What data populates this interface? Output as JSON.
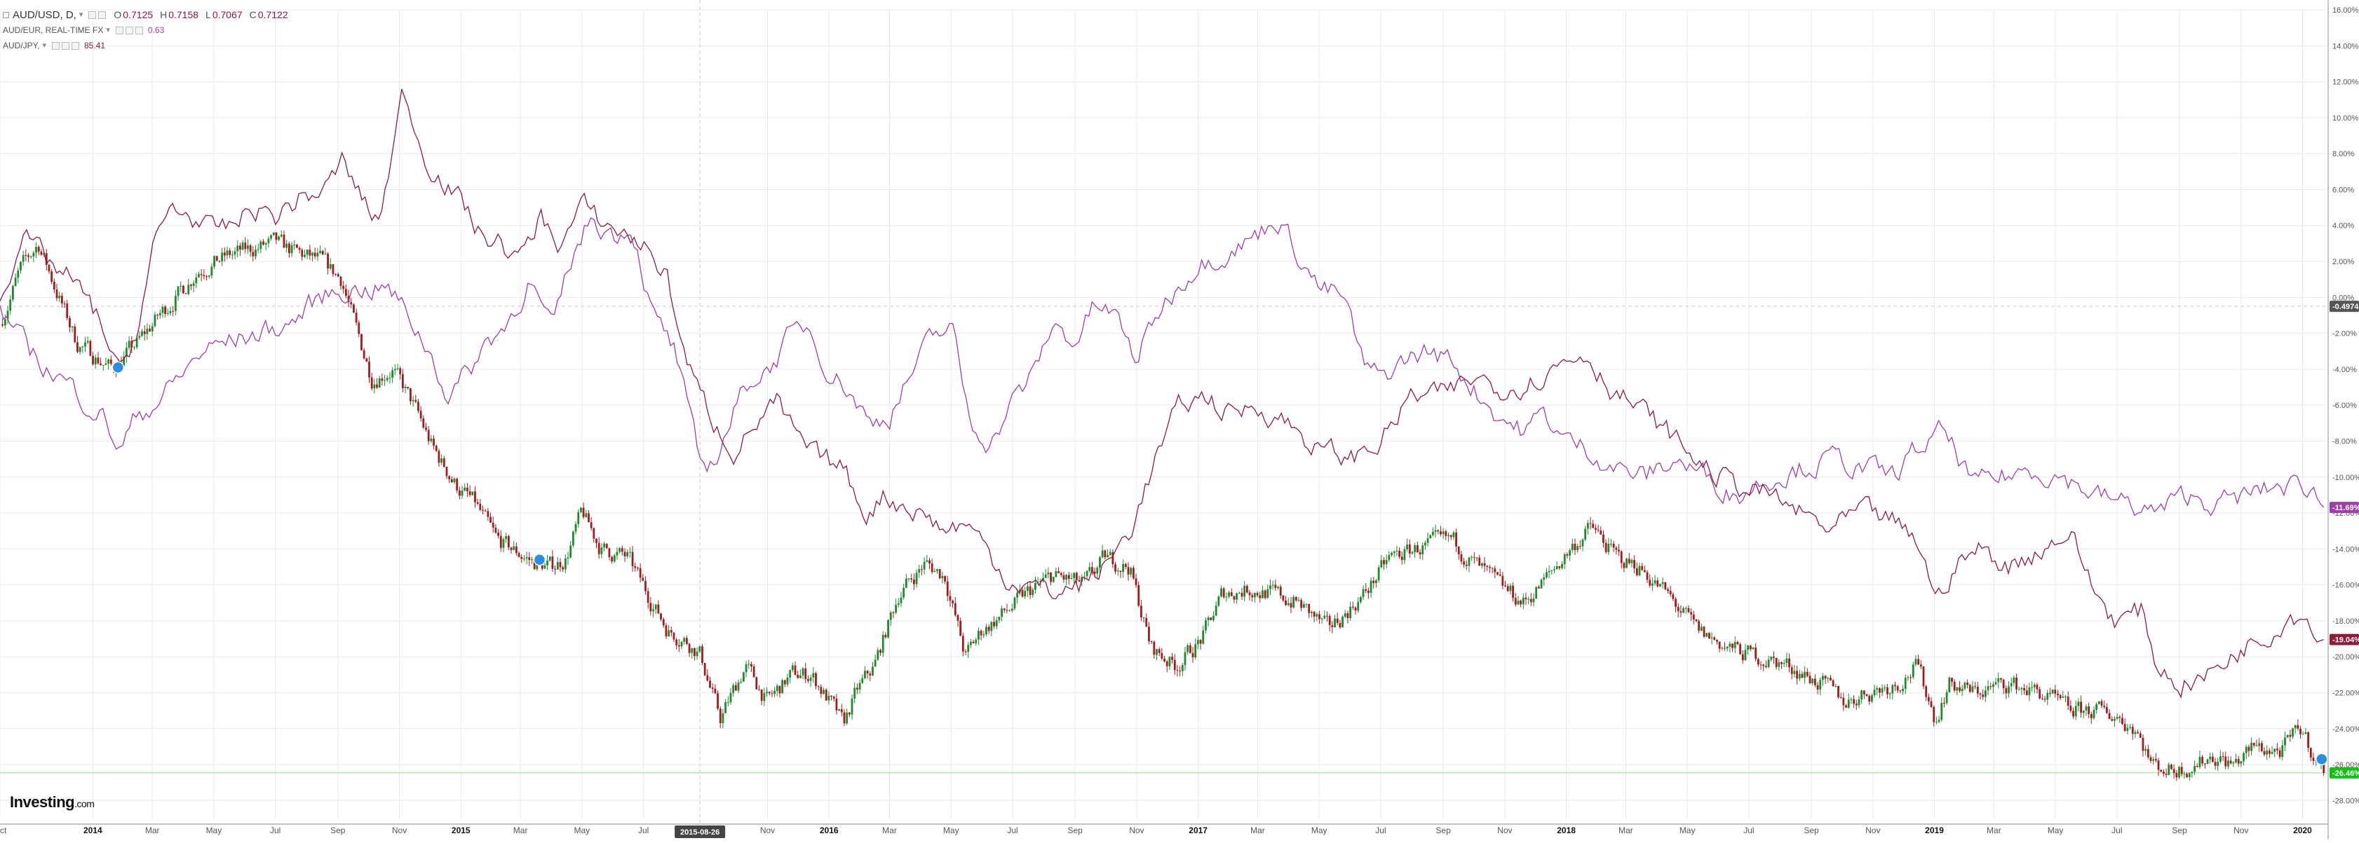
{
  "legend": {
    "main": {
      "symbol": "AUD/USD, D,",
      "caret": "▾",
      "open_label": "O",
      "open": "0.7125",
      "high_label": "H",
      "high": "0.7158",
      "low_label": "L",
      "low": "0.7067",
      "close_label": "C",
      "close": "0.7122"
    },
    "compare1": {
      "symbol": "AUD/EUR, REAL-TIME FX",
      "caret": "▾",
      "value": "0.63"
    },
    "compare2": {
      "symbol": "AUD/JPY,",
      "caret": "▾",
      "value": "85.41"
    }
  },
  "logo": {
    "brand": "Investing",
    "suffix": ".com"
  },
  "crosshair": {
    "date_label": "2015-08-26",
    "value_label": "-0.4974"
  },
  "last_values": {
    "main": "-26.46%",
    "compare1": "-11.69%",
    "compare2": "-19.04%"
  },
  "colors": {
    "up": "#1e8a2c",
    "down": "#a01c1c",
    "compare1": "#9c3fa8",
    "compare2": "#8e1b3a",
    "main_badge": "#12c212",
    "grid": "#e9e9e9"
  },
  "chart_data": {
    "type": "line",
    "y_unit": "percent change",
    "ylim": [
      -29,
      16
    ],
    "xlim": [
      "2013-10-01",
      "2020-01-25"
    ],
    "y_ticks": [
      16,
      14,
      12,
      10,
      8,
      6,
      4,
      2,
      0,
      -2,
      -4,
      -6,
      -8,
      -10,
      -12,
      -14,
      -16,
      -18,
      -20,
      -22,
      -24,
      -26,
      -28
    ],
    "y_tick_labels": [
      "16.00%",
      "14.00%",
      "12.00%",
      "10.00%",
      "8.00%",
      "6.00%",
      "4.00%",
      "2.00%",
      "0.00%",
      "-2.00%",
      "-4.00%",
      "-6.00%",
      "-8.00%",
      "-10.00%",
      "-12.00%",
      "-14.00%",
      "-16.00%",
      "-18.00%",
      "-20.00%",
      "-22.00%",
      "-24.00%",
      "-26.00%",
      "-28.00%"
    ],
    "x_ticks": [
      {
        "date": "2013-10-01",
        "label": "Oct",
        "bold": false
      },
      {
        "date": "2014-01-01",
        "label": "2014",
        "bold": true
      },
      {
        "date": "2014-03-01",
        "label": "Mar",
        "bold": false
      },
      {
        "date": "2014-05-01",
        "label": "May",
        "bold": false
      },
      {
        "date": "2014-07-01",
        "label": "Jul",
        "bold": false
      },
      {
        "date": "2014-09-01",
        "label": "Sep",
        "bold": false
      },
      {
        "date": "2014-11-01",
        "label": "Nov",
        "bold": false
      },
      {
        "date": "2015-01-01",
        "label": "2015",
        "bold": true
      },
      {
        "date": "2015-03-01",
        "label": "Mar",
        "bold": false
      },
      {
        "date": "2015-05-01",
        "label": "May",
        "bold": false
      },
      {
        "date": "2015-07-01",
        "label": "Jul",
        "bold": false
      },
      {
        "date": "2015-11-01",
        "label": "Nov",
        "bold": false
      },
      {
        "date": "2016-01-01",
        "label": "2016",
        "bold": true
      },
      {
        "date": "2016-03-01",
        "label": "Mar",
        "bold": false
      },
      {
        "date": "2016-05-01",
        "label": "May",
        "bold": false
      },
      {
        "date": "2016-07-01",
        "label": "Jul",
        "bold": false
      },
      {
        "date": "2016-09-01",
        "label": "Sep",
        "bold": false
      },
      {
        "date": "2016-11-01",
        "label": "Nov",
        "bold": false
      },
      {
        "date": "2017-01-01",
        "label": "2017",
        "bold": true
      },
      {
        "date": "2017-03-01",
        "label": "Mar",
        "bold": false
      },
      {
        "date": "2017-05-01",
        "label": "May",
        "bold": false
      },
      {
        "date": "2017-07-01",
        "label": "Jul",
        "bold": false
      },
      {
        "date": "2017-09-01",
        "label": "Sep",
        "bold": false
      },
      {
        "date": "2017-11-01",
        "label": "Nov",
        "bold": false
      },
      {
        "date": "2018-01-01",
        "label": "2018",
        "bold": true
      },
      {
        "date": "2018-03-01",
        "label": "Mar",
        "bold": false
      },
      {
        "date": "2018-05-01",
        "label": "May",
        "bold": false
      },
      {
        "date": "2018-07-01",
        "label": "Jul",
        "bold": false
      },
      {
        "date": "2018-09-01",
        "label": "Sep",
        "bold": false
      },
      {
        "date": "2018-11-01",
        "label": "Nov",
        "bold": false
      },
      {
        "date": "2019-01-01",
        "label": "2019",
        "bold": true
      },
      {
        "date": "2019-03-01",
        "label": "Mar",
        "bold": false
      },
      {
        "date": "2019-05-01",
        "label": "May",
        "bold": false
      },
      {
        "date": "2019-07-01",
        "label": "Jul",
        "bold": false
      },
      {
        "date": "2019-09-01",
        "label": "Sep",
        "bold": false
      },
      {
        "date": "2019-11-01",
        "label": "Nov",
        "bold": false
      },
      {
        "date": "2020-01-01",
        "label": "2020",
        "bold": true
      }
    ],
    "reference_lines": [
      {
        "y": -0.4974,
        "style": "dashed"
      },
      {
        "y": -26.46,
        "style": "solid"
      }
    ],
    "series": [
      {
        "name": "AUD/USD",
        "style": "candles",
        "x": [
          "2013-10-01",
          "2013-10-21",
          "2013-11-08",
          "2013-11-25",
          "2013-12-16",
          "2014-01-20",
          "2014-01-28",
          "2014-02-15",
          "2014-03-08",
          "2014-04-01",
          "2014-04-15",
          "2014-05-15",
          "2014-06-15",
          "2014-07-01",
          "2014-07-25",
          "2014-08-15",
          "2014-09-05",
          "2014-09-20",
          "2014-10-05",
          "2014-10-25",
          "2014-11-15",
          "2014-12-05",
          "2014-12-28",
          "2015-01-15",
          "2015-02-05",
          "2015-03-01",
          "2015-03-15",
          "2015-04-01",
          "2015-04-15",
          "2015-05-01",
          "2015-05-20",
          "2015-06-15",
          "2015-07-10",
          "2015-07-25",
          "2015-08-10",
          "2015-08-26",
          "2015-09-15",
          "2015-10-10",
          "2015-11-01",
          "2015-11-25",
          "2015-12-15",
          "2016-01-05",
          "2016-01-15",
          "2016-01-28",
          "2016-02-15",
          "2016-03-10",
          "2016-04-05",
          "2016-04-25",
          "2016-05-15",
          "2016-06-01",
          "2016-06-25",
          "2016-07-15",
          "2016-08-10",
          "2016-09-10",
          "2016-10-01",
          "2016-10-25",
          "2016-11-15",
          "2016-12-10",
          "2017-01-05",
          "2017-01-25",
          "2017-02-20",
          "2017-03-15",
          "2017-04-10",
          "2017-05-10",
          "2017-06-15",
          "2017-07-10",
          "2017-08-05",
          "2017-09-10",
          "2017-10-05",
          "2017-10-25",
          "2017-11-20",
          "2017-12-10",
          "2018-01-05",
          "2018-01-26",
          "2018-02-20",
          "2018-03-15",
          "2018-04-10",
          "2018-05-10",
          "2018-06-10",
          "2018-07-10",
          "2018-08-10",
          "2018-09-10",
          "2018-10-05",
          "2018-10-25",
          "2018-11-25",
          "2018-12-15",
          "2019-01-02",
          "2019-01-15",
          "2019-02-10",
          "2019-03-15",
          "2019-04-15",
          "2019-05-15",
          "2019-06-10",
          "2019-07-01",
          "2019-07-20",
          "2019-08-05",
          "2019-08-25",
          "2019-09-15",
          "2019-10-05",
          "2019-10-25",
          "2019-11-15",
          "2019-12-10",
          "2019-12-31",
          "2020-01-15",
          "2020-01-22"
        ],
        "y": [
          -1.5,
          1.5,
          3.0,
          0.5,
          -2.5,
          -4.0,
          -3.5,
          -2.5,
          -1.0,
          0.5,
          1.5,
          2.3,
          2.8,
          3.0,
          2.4,
          2.0,
          1.0,
          -2.0,
          -4.5,
          -4.0,
          -6.0,
          -8.5,
          -10.5,
          -11.5,
          -13.5,
          -14.3,
          -14.8,
          -15.0,
          -14.5,
          -12.0,
          -14.0,
          -14.5,
          -17.0,
          -18.5,
          -19.0,
          -19.8,
          -23.5,
          -20.5,
          -22.5,
          -21.0,
          -21.0,
          -22.8,
          -23.8,
          -22.0,
          -20.5,
          -16.5,
          -14.8,
          -15.5,
          -20.0,
          -18.5,
          -17.5,
          -16.5,
          -15.5,
          -16.0,
          -14.5,
          -15.0,
          -19.5,
          -20.5,
          -19.0,
          -16.5,
          -16.2,
          -16.5,
          -17.0,
          -18.5,
          -16.5,
          -14.5,
          -14.0,
          -13.5,
          -15.0,
          -16.0,
          -17.0,
          -15.8,
          -14.0,
          -12.8,
          -14.5,
          -15.0,
          -16.5,
          -18.5,
          -19.5,
          -20.0,
          -20.5,
          -21.5,
          -22.5,
          -22.0,
          -21.5,
          -20.5,
          -23.5,
          -21.5,
          -22.0,
          -21.5,
          -22.0,
          -23.0,
          -23.0,
          -23.3,
          -24.0,
          -26.0,
          -26.3,
          -26.0,
          -25.5,
          -26.0,
          -25.0,
          -25.3,
          -24.0,
          -25.8,
          -26.46
        ]
      },
      {
        "name": "AUD/EUR, REAL-TIME FX",
        "style": "line",
        "x": [
          "2013-10-01",
          "2013-10-22",
          "2013-11-08",
          "2013-12-01",
          "2013-12-20",
          "2014-01-10",
          "2014-01-28",
          "2014-02-15",
          "2014-03-01",
          "2014-03-20",
          "2014-04-20",
          "2014-05-15",
          "2014-06-15",
          "2014-07-15",
          "2014-08-15",
          "2014-09-10",
          "2014-10-01",
          "2014-10-20",
          "2014-11-10",
          "2014-12-01",
          "2014-12-20",
          "2015-01-10",
          "2015-01-26",
          "2015-02-15",
          "2015-03-10",
          "2015-04-01",
          "2015-04-20",
          "2015-05-10",
          "2015-06-01",
          "2015-06-20",
          "2015-07-10",
          "2015-08-01",
          "2015-08-26",
          "2015-09-10",
          "2015-09-28",
          "2015-10-15",
          "2015-11-01",
          "2015-11-20",
          "2015-12-10",
          "2016-01-01",
          "2016-01-20",
          "2016-02-10",
          "2016-03-01",
          "2016-03-20",
          "2016-04-10",
          "2016-05-01",
          "2016-05-20",
          "2016-06-10",
          "2016-06-28",
          "2016-07-20",
          "2016-08-10",
          "2016-09-01",
          "2016-09-20",
          "2016-10-10",
          "2016-11-01",
          "2016-11-20",
          "2016-12-10",
          "2017-01-01",
          "2017-01-25",
          "2017-02-15",
          "2017-03-01",
          "2017-03-20",
          "2017-04-10",
          "2017-05-01",
          "2017-05-25",
          "2017-06-15",
          "2017-07-01",
          "2017-07-25",
          "2017-08-15",
          "2017-09-10",
          "2017-10-01",
          "2017-10-25",
          "2017-11-20",
          "2017-12-10",
          "2018-01-01",
          "2018-01-25",
          "2018-02-20",
          "2018-03-20",
          "2018-04-20",
          "2018-05-20",
          "2018-06-20",
          "2018-07-20",
          "2018-08-20",
          "2018-09-20",
          "2018-10-20",
          "2018-11-20",
          "2018-12-15",
          "2019-01-10",
          "2019-02-10",
          "2019-03-10",
          "2019-04-10",
          "2019-05-10",
          "2019-06-10",
          "2019-07-10",
          "2019-08-10",
          "2019-09-10",
          "2019-10-10",
          "2019-11-10",
          "2019-12-10",
          "2020-01-10",
          "2020-01-22"
        ],
        "y": [
          -0.5,
          -2.5,
          -3.5,
          -4.5,
          -5.5,
          -6.5,
          -8.5,
          -6.5,
          -6.0,
          -5.0,
          -3.0,
          -2.5,
          -2.0,
          -1.5,
          0.0,
          0.5,
          0.5,
          0.5,
          -1.0,
          -3.0,
          -5.5,
          -4.0,
          -2.5,
          -1.5,
          1.0,
          -2.0,
          2.0,
          4.5,
          3.5,
          4.0,
          -1.0,
          -3.0,
          -9.5,
          -9.0,
          -6.5,
          -4.5,
          -4.0,
          -2.5,
          -1.5,
          -4.0,
          -5.0,
          -7.0,
          -6.5,
          -4.5,
          -2.5,
          -1.5,
          -7.0,
          -8.0,
          -6.0,
          -4.5,
          -1.5,
          -2.5,
          -0.5,
          -1.0,
          -3.5,
          -1.0,
          0.5,
          2.0,
          2.5,
          3.0,
          3.5,
          4.5,
          2.5,
          0.5,
          0.0,
          -4.0,
          -4.5,
          -3.5,
          -3.0,
          -3.5,
          -5.0,
          -6.5,
          -7.5,
          -6.5,
          -8.0,
          -8.5,
          -9.5,
          -10.0,
          -9.0,
          -10.0,
          -11.0,
          -10.0,
          -9.5,
          -9.0,
          -9.5,
          -10.0,
          -8.5,
          -7.5,
          -10.5,
          -10.0,
          -9.5,
          -10.0,
          -11.0,
          -11.5,
          -12.0,
          -11.0,
          -11.5,
          -11.0,
          -10.5,
          -10.5,
          -11.69
        ]
      },
      {
        "name": "AUD/JPY",
        "style": "line",
        "x": [
          "2013-10-01",
          "2013-10-22",
          "2013-11-15",
          "2013-12-10",
          "2014-01-10",
          "2014-01-28",
          "2014-02-15",
          "2014-03-01",
          "2014-03-20",
          "2014-04-10",
          "2014-04-30",
          "2014-05-20",
          "2014-06-10",
          "2014-07-01",
          "2014-07-25",
          "2014-08-20",
          "2014-09-05",
          "2014-09-25",
          "2014-10-10",
          "2014-10-25",
          "2014-11-05",
          "2014-11-25",
          "2014-12-15",
          "2015-01-05",
          "2015-01-20",
          "2015-02-10",
          "2015-03-01",
          "2015-03-20",
          "2015-04-10",
          "2015-05-01",
          "2015-05-25",
          "2015-06-15",
          "2015-07-10",
          "2015-07-25",
          "2015-08-10",
          "2015-08-26",
          "2015-09-10",
          "2015-09-30",
          "2015-10-20",
          "2015-11-10",
          "2015-12-01",
          "2015-12-20",
          "2016-01-15",
          "2016-02-05",
          "2016-02-25",
          "2016-03-15",
          "2016-04-05",
          "2016-04-25",
          "2016-05-15",
          "2016-06-05",
          "2016-06-24",
          "2016-07-15",
          "2016-08-10",
          "2016-09-05",
          "2016-10-01",
          "2016-10-25",
          "2016-11-20",
          "2016-12-15",
          "2017-01-10",
          "2017-02-01",
          "2017-03-01",
          "2017-04-01",
          "2017-05-01",
          "2017-06-01",
          "2017-07-01",
          "2017-08-01",
          "2017-09-01",
          "2017-10-01",
          "2017-11-01",
          "2017-12-01",
          "2018-01-01",
          "2018-01-20",
          "2018-02-15",
          "2018-03-20",
          "2018-04-20",
          "2018-05-20",
          "2018-06-20",
          "2018-07-20",
          "2018-08-20",
          "2018-09-20",
          "2018-10-20",
          "2018-11-20",
          "2018-12-20",
          "2019-01-03",
          "2019-01-20",
          "2019-02-15",
          "2019-03-15",
          "2019-04-15",
          "2019-05-15",
          "2019-06-10",
          "2019-07-01",
          "2019-07-25",
          "2019-08-10",
          "2019-09-01",
          "2019-10-01",
          "2019-11-01",
          "2019-12-01",
          "2019-12-20",
          "2020-01-10",
          "2020-01-22"
        ],
        "y": [
          0.0,
          3.5,
          2.0,
          1.0,
          -1.5,
          -4.5,
          -1.5,
          2.5,
          5.0,
          4.5,
          3.5,
          4.0,
          5.0,
          4.5,
          5.5,
          6.0,
          7.5,
          5.5,
          4.0,
          8.0,
          11.5,
          8.0,
          6.5,
          5.0,
          3.5,
          3.0,
          2.0,
          4.5,
          3.0,
          5.0,
          4.0,
          3.5,
          2.5,
          1.0,
          -3.0,
          -5.5,
          -7.0,
          -8.5,
          -7.0,
          -6.0,
          -8.0,
          -9.0,
          -9.5,
          -12.0,
          -11.0,
          -11.5,
          -12.0,
          -13.0,
          -12.5,
          -14.0,
          -15.5,
          -16.0,
          -16.5,
          -16.0,
          -15.0,
          -13.0,
          -9.0,
          -6.0,
          -5.5,
          -6.5,
          -6.0,
          -7.0,
          -8.5,
          -9.0,
          -8.0,
          -5.5,
          -5.5,
          -4.5,
          -5.0,
          -4.5,
          -3.5,
          -3.0,
          -5.0,
          -6.5,
          -8.0,
          -9.5,
          -10.5,
          -11.0,
          -12.0,
          -13.0,
          -12.0,
          -12.5,
          -14.0,
          -17.0,
          -15.0,
          -14.0,
          -15.0,
          -14.0,
          -13.0,
          -16.5,
          -18.0,
          -17.5,
          -20.5,
          -21.5,
          -21.0,
          -19.5,
          -18.5,
          -17.5,
          -18.0,
          -19.04
        ]
      }
    ]
  }
}
